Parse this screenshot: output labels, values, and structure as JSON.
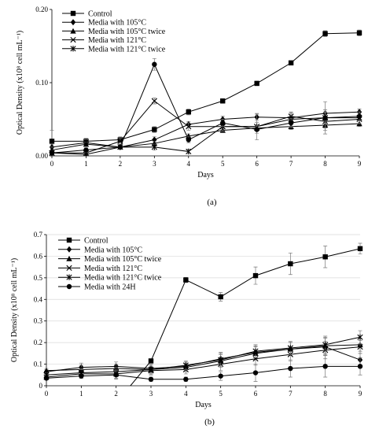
{
  "chart_data": [
    {
      "type": "line",
      "caption": "(a)",
      "xlabel": "Days",
      "ylabel": "Optical Density",
      "ylabel_unit": "(x10⁸ cell mL⁻¹)",
      "x": [
        0,
        1,
        2,
        3,
        4,
        5,
        6,
        7,
        8,
        9
      ],
      "xlim": [
        0,
        9
      ],
      "ylim": [
        0,
        0.2
      ],
      "yticks": [
        0,
        0.1,
        0.2
      ],
      "ytick_labels": [
        "0.00",
        "0.10",
        "0.20"
      ],
      "grid": false,
      "legend_position": "top-left",
      "series": [
        {
          "name": "Control",
          "marker": "square",
          "values": [
            0.02,
            0.02,
            0.022,
            0.036,
            0.06,
            0.075,
            0.099,
            0.127,
            0.167,
            0.168
          ],
          "errors": [
            0.015,
            0.004,
            0.004,
            0.004,
            0.004,
            0.003,
            0.003,
            0.003,
            0.004,
            0.004
          ]
        },
        {
          "name": "Media with 105°C",
          "marker": "diamond",
          "values": [
            0.012,
            0.018,
            0.012,
            0.022,
            0.043,
            0.05,
            0.053,
            0.052,
            0.058,
            0.06
          ],
          "errors": [
            0.004,
            0.004,
            0.003,
            0.004,
            0.004,
            0.004,
            0.004,
            0.005,
            0.005,
            0.004
          ]
        },
        {
          "name": "Media with 105°C twice",
          "marker": "triangle",
          "values": [
            0.008,
            0.016,
            0.012,
            0.017,
            0.027,
            0.035,
            0.038,
            0.04,
            0.042,
            0.044
          ],
          "errors": [
            0.004,
            0.003,
            0.003,
            0.003,
            0.003,
            0.003,
            0.003,
            0.004,
            0.004,
            0.004
          ]
        },
        {
          "name": "Media with 121°C",
          "marker": "x",
          "values": [
            0.004,
            0.004,
            0.02,
            0.075,
            0.04,
            0.04,
            0.04,
            0.054,
            0.047,
            0.05
          ],
          "errors": [
            0.003,
            0.003,
            0.004,
            0.004,
            0.005,
            0.006,
            0.018,
            0.005,
            0.012,
            0.006
          ]
        },
        {
          "name": "Media with 121°C twice",
          "marker": "asterisk",
          "values": [
            0.004,
            0.002,
            0.012,
            0.012,
            0.006,
            0.04,
            0.04,
            0.05,
            0.052,
            0.052
          ],
          "errors": [
            0.002,
            0.002,
            0.003,
            0.004,
            0.003,
            0.006,
            0.006,
            0.01,
            0.022,
            0.008
          ]
        },
        {
          "name": "",
          "marker": "circle",
          "values": [
            0.004,
            0.008,
            0.012,
            0.125,
            0.022,
            0.045,
            0.036,
            0.045,
            0.052,
            0.054
          ],
          "errors": [
            0.002,
            0.003,
            0.003,
            0.008,
            0.004,
            0.005,
            0.005,
            0.006,
            0.008,
            0.006
          ]
        }
      ]
    },
    {
      "type": "line",
      "caption": "(b)",
      "xlabel": "Days",
      "ylabel": "Optical Density",
      "ylabel_unit": "(x10⁸ cell mL⁻¹)",
      "x": [
        0,
        1,
        2,
        3,
        4,
        5,
        6,
        7,
        8,
        9
      ],
      "xlim": [
        0,
        9
      ],
      "ylim": [
        0,
        0.7
      ],
      "yticks": [
        0,
        0.1,
        0.2,
        0.3,
        0.4,
        0.5,
        0.6,
        0.7
      ],
      "ytick_labels": [
        "0",
        "0.1",
        "0.2",
        "0.3",
        "0.4",
        "0.5",
        "0.6",
        "0.7"
      ],
      "grid": true,
      "legend_position": "top-left",
      "series": [
        {
          "name": "Control",
          "marker": "square",
          "start_value": -0.08,
          "values": [
            null,
            null,
            null,
            0.115,
            0.49,
            0.412,
            0.51,
            0.565,
            0.597,
            0.635
          ],
          "errors": [
            0,
            0,
            0,
            0.01,
            0.012,
            0.02,
            0.04,
            0.05,
            0.05,
            0.025
          ]
        },
        {
          "name": "Media with 105°C",
          "marker": "diamond",
          "values": [
            0.065,
            0.085,
            0.09,
            0.08,
            0.09,
            0.125,
            0.155,
            0.17,
            0.18,
            0.12
          ],
          "errors": [
            0.01,
            0.02,
            0.02,
            0.02,
            0.02,
            0.03,
            0.03,
            0.03,
            0.04,
            0.03
          ]
        },
        {
          "name": "Media with 105°C twice",
          "marker": "triangle",
          "values": [
            0.07,
            0.075,
            0.08,
            0.075,
            0.085,
            0.115,
            0.15,
            0.17,
            0.185,
            0.19
          ],
          "errors": [
            0.01,
            0.02,
            0.02,
            0.02,
            0.02,
            0.03,
            0.03,
            0.03,
            0.04,
            0.03
          ]
        },
        {
          "name": "Media with 121°C",
          "marker": "x",
          "values": [
            0.04,
            0.055,
            0.055,
            0.07,
            0.075,
            0.1,
            0.125,
            0.145,
            0.165,
            0.18
          ],
          "errors": [
            0.01,
            0.02,
            0.02,
            0.02,
            0.02,
            0.03,
            0.03,
            0.03,
            0.04,
            0.03
          ]
        },
        {
          "name": "Media with 121°C twice",
          "marker": "asterisk",
          "values": [
            0.05,
            0.06,
            0.065,
            0.075,
            0.095,
            0.12,
            0.16,
            0.175,
            0.19,
            0.225
          ],
          "errors": [
            0.01,
            0.02,
            0.02,
            0.02,
            0.02,
            0.03,
            0.03,
            0.03,
            0.04,
            0.03
          ]
        },
        {
          "name": "Media with 24H",
          "marker": "circle",
          "values": [
            0.035,
            0.045,
            0.05,
            0.03,
            0.03,
            0.045,
            0.06,
            0.08,
            0.09,
            0.09
          ],
          "errors": [
            0.005,
            0.01,
            0.02,
            0.01,
            0.01,
            0.02,
            0.04,
            0.04,
            0.05,
            0.04
          ]
        }
      ]
    }
  ]
}
